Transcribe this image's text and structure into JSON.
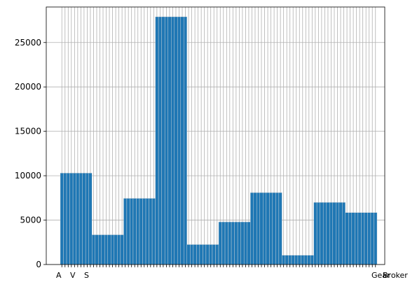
{
  "chart_data": {
    "type": "bar",
    "title": "",
    "xlabel": "",
    "ylabel": "",
    "ylim": [
      0,
      29000
    ],
    "yticks": [
      0,
      5000,
      10000,
      15000,
      20000,
      25000
    ],
    "ytick_labels": [
      "0",
      "5000",
      "10000",
      "15000",
      "20000",
      "25000"
    ],
    "grid": true,
    "bar_color": "#1f77b4",
    "bar_edge_color": "#dddddd",
    "x_tick_labels_visible": [
      "A",
      "V",
      "S",
      "Gear",
      "Broker"
    ],
    "groups": [
      {
        "count": 10,
        "value": 10300
      },
      {
        "count": 10,
        "value": 3350
      },
      {
        "count": 10,
        "value": 7450
      },
      {
        "count": 10,
        "value": 27900
      },
      {
        "count": 10,
        "value": 2250
      },
      {
        "count": 10,
        "value": 4800
      },
      {
        "count": 10,
        "value": 8100
      },
      {
        "count": 10,
        "value": 1050
      },
      {
        "count": 10,
        "value": 7000
      },
      {
        "count": 10,
        "value": 5850
      }
    ]
  }
}
